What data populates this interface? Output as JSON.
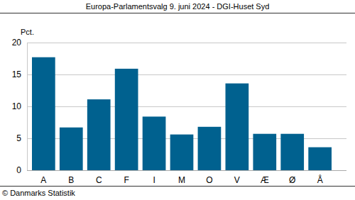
{
  "chart_data": {
    "type": "bar",
    "title": "Europa-Parlamentsvalg 9. juni 2024 - DGI-Huset Syd",
    "y_label": "Pct.",
    "source": "© Danmarks Statistik",
    "categories": [
      "A",
      "B",
      "C",
      "F",
      "I",
      "M",
      "O",
      "V",
      "Æ",
      "Ø",
      "Å"
    ],
    "values": [
      17.7,
      6.7,
      11.1,
      15.9,
      8.4,
      5.6,
      6.8,
      13.6,
      5.7,
      5.7,
      3.6
    ],
    "color": "#00618f",
    "ylim": [
      0,
      20
    ],
    "yticks": [
      0,
      5,
      10,
      15,
      20
    ],
    "grid": true
  }
}
